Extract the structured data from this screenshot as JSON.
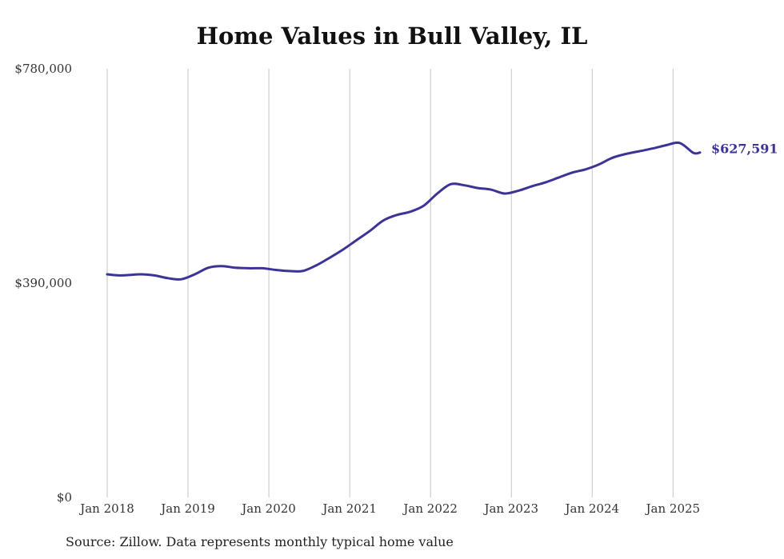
{
  "chart_data": {
    "type": "line",
    "title": "Home Values in Bull Valley, IL",
    "source": "Source: Zillow. Data represents monthly typical home value",
    "x_ticks": [
      "Jan 2018",
      "Jan 2019",
      "Jan 2020",
      "Jan 2021",
      "Jan 2022",
      "Jan 2023",
      "Jan 2024",
      "Jan 2025"
    ],
    "y_ticks": [
      "$0",
      "$390,000",
      "$780,000"
    ],
    "y_tick_values": [
      0,
      390000,
      780000
    ],
    "ylim": [
      0,
      780000
    ],
    "xlim": [
      "2018-01",
      "2025-05"
    ],
    "grid": "vertical",
    "end_label": "$627,591",
    "series": [
      {
        "color": "#3b3395",
        "x": [
          "2018-01",
          "2018-03",
          "2018-06",
          "2018-08",
          "2018-10",
          "2018-12",
          "2019-02",
          "2019-04",
          "2019-06",
          "2019-08",
          "2019-10",
          "2019-12",
          "2020-02",
          "2020-04",
          "2020-06",
          "2020-08",
          "2020-10",
          "2020-12",
          "2021-02",
          "2021-04",
          "2021-06",
          "2021-08",
          "2021-10",
          "2021-12",
          "2022-02",
          "2022-04",
          "2022-06",
          "2022-08",
          "2022-10",
          "2022-12",
          "2023-02",
          "2023-04",
          "2023-06",
          "2023-08",
          "2023-10",
          "2023-12",
          "2024-02",
          "2024-04",
          "2024-06",
          "2024-08",
          "2024-10",
          "2024-12",
          "2025-02",
          "2025-04",
          "2025-05"
        ],
        "values": [
          406000,
          404000,
          406000,
          404000,
          399000,
          397000,
          406000,
          418000,
          421000,
          418000,
          417000,
          417000,
          414000,
          412000,
          412000,
          422000,
          436000,
          451000,
          468000,
          485000,
          504000,
          514000,
          520000,
          531000,
          553000,
          570000,
          568000,
          563000,
          560000,
          553000,
          558000,
          566000,
          573000,
          582000,
          591000,
          597000,
          606000,
          618000,
          625000,
          630000,
          635000,
          641000,
          645000,
          627000,
          627591
        ]
      }
    ]
  }
}
